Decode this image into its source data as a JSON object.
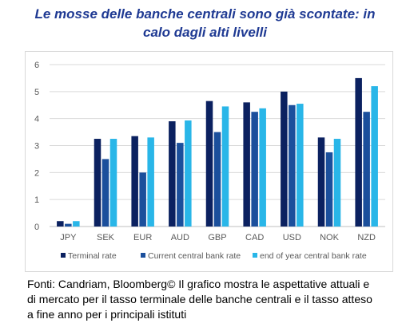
{
  "title_lines": [
    "Le mosse delle banche centrali sono già scontate: in",
    "calo dagli alti livelli"
  ],
  "caption_lines": [
    "Fonti: Candriam, Bloomberg© Il grafico mostra le aspettative attuali e",
    "di mercato per il tasso terminale delle banche centrali e il tasso atteso",
    "a fine anno per i principali istituti"
  ],
  "chart_data": {
    "type": "bar",
    "title": "",
    "xlabel": "",
    "ylabel": "",
    "ylim": [
      0,
      6
    ],
    "yticks": [
      "0",
      "1",
      "2",
      "3",
      "4",
      "5",
      "6"
    ],
    "grid": "horizontal",
    "legend_position": "bottom",
    "categories": [
      "JPY",
      "SEK",
      "EUR",
      "AUD",
      "GBP",
      "CAD",
      "USD",
      "NOK",
      "NZD"
    ],
    "series": [
      {
        "name": "Terminal rate",
        "color": "#0b2160",
        "values": [
          0.2,
          3.25,
          3.35,
          3.9,
          4.65,
          4.6,
          5.0,
          3.3,
          5.5
        ]
      },
      {
        "name": "Current central bank rate",
        "color": "#1b4f9c",
        "values": [
          0.1,
          2.5,
          2.0,
          3.1,
          3.5,
          4.25,
          4.5,
          2.75,
          4.25
        ]
      },
      {
        "name": "end of year central bank rate",
        "color": "#29b6e8",
        "values": [
          0.2,
          3.25,
          3.3,
          3.93,
          4.45,
          4.38,
          4.55,
          3.25,
          5.2
        ]
      }
    ]
  }
}
